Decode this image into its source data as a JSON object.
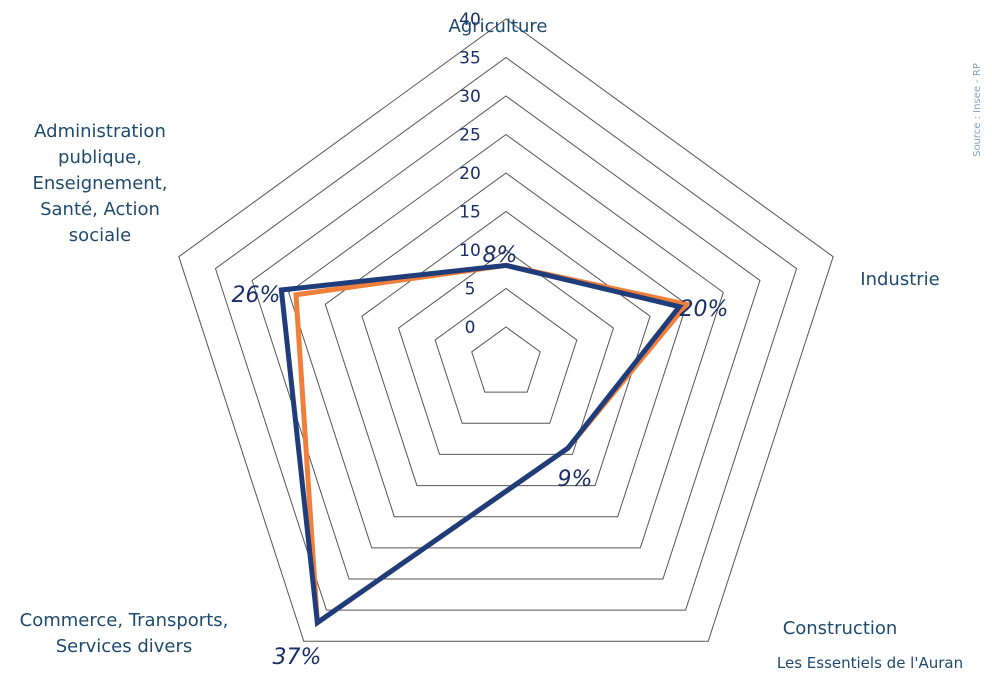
{
  "chart_data": {
    "type": "radar",
    "axes": [
      "Agriculture",
      "Industrie",
      "Construction",
      "Commerce, Transports, Services divers",
      "Administration publique, Enseignement, Santé, Action sociale"
    ],
    "ticks": [
      "0",
      "5",
      "10",
      "15",
      "20",
      "25",
      "30",
      "35",
      "40"
    ],
    "rlim": [
      0,
      40
    ],
    "series": [
      {
        "values": [
          8,
          20,
          9,
          37,
          24
        ],
        "color": "#f07f3c"
      },
      {
        "values": [
          8,
          19,
          9,
          37,
          26
        ],
        "color": "#1f3d7a"
      }
    ],
    "annotations": [
      "8%",
      "20%",
      "9%",
      "37%",
      "26%"
    ]
  },
  "labels": {
    "agriculture": "Agriculture",
    "industrie": "Industrie",
    "construction": "Construction",
    "commerce_line1": "Commerce, Transports,",
    "commerce_line2": "Services divers",
    "admin_line1": "Administration",
    "admin_line2": "publique,",
    "admin_line3": "Enseignement,",
    "admin_line4": "Santé, Action",
    "admin_line5": "sociale"
  },
  "source": "Source : Insee - RP",
  "footer": "Les Essentiels de l'Auran"
}
